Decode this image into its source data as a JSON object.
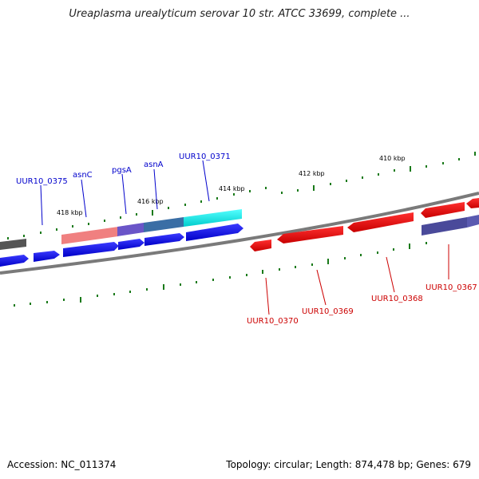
{
  "title": "Ureaplasma urealyticum serovar 10 str. ATCC 33699, complete ...",
  "footer": {
    "accession": "Accession: NC_011374",
    "topology": "Topology: circular; Length: 874,478 bp; Genes: 679"
  },
  "ruler_ticks": [
    "418 kbp",
    "416 kbp",
    "414 kbp",
    "412 kbp",
    "410 kbp"
  ],
  "genes_forward": [
    {
      "label": "UUR10_0375",
      "color": "#0000cc"
    },
    {
      "label": "asnC",
      "color": "#0000cc"
    },
    {
      "label": "pgsA",
      "color": "#0000cc"
    },
    {
      "label": "asnA",
      "color": "#0000cc"
    },
    {
      "label": "UUR10_0371",
      "color": "#0000cc"
    }
  ],
  "genes_reverse": [
    {
      "label": "UUR10_0370",
      "color": "#cc0000"
    },
    {
      "label": "UUR10_0369",
      "color": "#cc0000"
    },
    {
      "label": "UUR10_0368",
      "color": "#cc0000"
    },
    {
      "label": "UUR10_0367",
      "color": "#cc0000"
    }
  ],
  "colors": {
    "forward": "#0000ff",
    "reverse": "#ff0000",
    "backbone": "#808080",
    "ticks": "#1a7a1a",
    "cyan": "#00e5e5",
    "steelblue": "#3a6ea5",
    "salmon": "#f08080",
    "slateblue": "#5a4fb0"
  }
}
